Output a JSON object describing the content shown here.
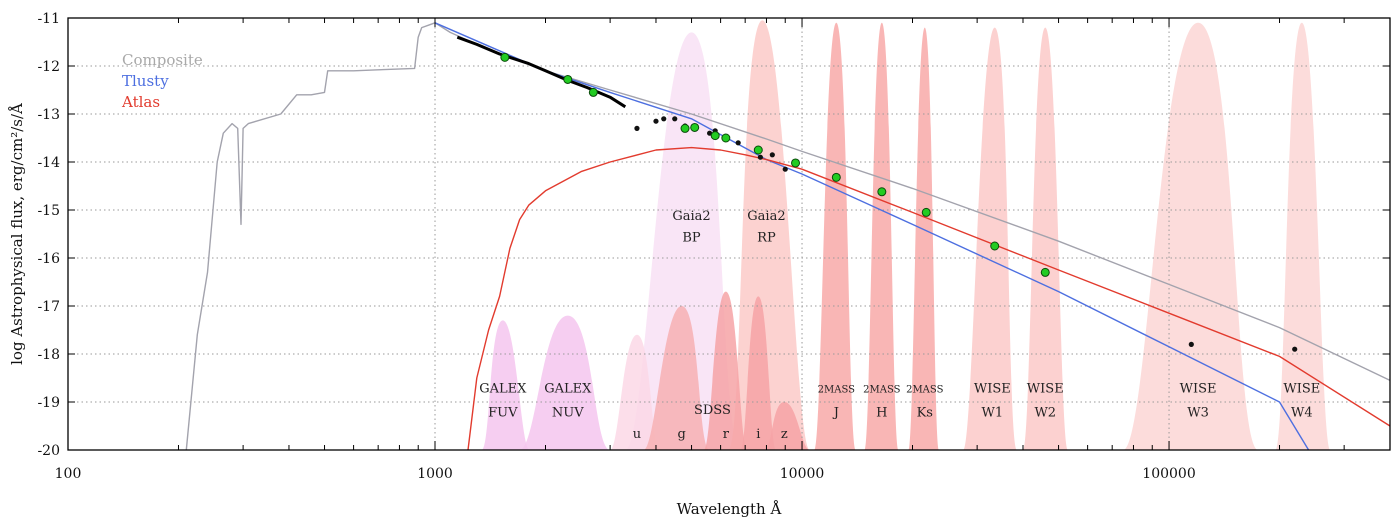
{
  "chart_data": {
    "type": "line",
    "xlabel": "Wavelength Å",
    "ylabel": "log Astrophysical flux, erg/cm²/s/Å",
    "xscale": "log",
    "xlim": [
      100,
      400000
    ],
    "ylim": [
      -20,
      -11
    ],
    "x_ticks": [
      {
        "value": 100,
        "label": "100"
      },
      {
        "value": 1000,
        "label": "1000"
      },
      {
        "value": 10000,
        "label": "10000"
      },
      {
        "value": 100000,
        "label": "100000"
      }
    ],
    "y_ticks": [
      {
        "value": -11,
        "label": "-11"
      },
      {
        "value": -12,
        "label": "-12"
      },
      {
        "value": -13,
        "label": "-13"
      },
      {
        "value": -14,
        "label": "-14"
      },
      {
        "value": -15,
        "label": "-15"
      },
      {
        "value": -16,
        "label": "-16"
      },
      {
        "value": -17,
        "label": "-17"
      },
      {
        "value": -18,
        "label": "-18"
      },
      {
        "value": -19,
        "label": "-19"
      },
      {
        "value": -20,
        "label": "-20"
      }
    ],
    "grid": true,
    "legend_position": "top-left",
    "legend": [
      {
        "label": "Composite",
        "color": "#a9a9a9"
      },
      {
        "label": "Tlusty",
        "color": "#4d6fe0"
      },
      {
        "label": "Atlas",
        "color": "#e23b2e"
      }
    ],
    "series": [
      {
        "name": "Composite",
        "color": "#a3a3ad",
        "x": [
          210,
          225,
          240,
          255,
          265,
          280,
          290,
          296,
          300,
          310,
          380,
          420,
          460,
          500,
          510,
          600,
          700,
          880,
          900,
          920,
          960,
          1000,
          1100,
          1300,
          2000,
          3000,
          5000,
          8000,
          10000,
          20000,
          50000,
          100000,
          200000,
          400000
        ],
        "y": [
          -20,
          -17.6,
          -16.3,
          -14,
          -13.4,
          -13.2,
          -13.3,
          -15.3,
          -13.3,
          -13.2,
          -13.0,
          -12.6,
          -12.6,
          -12.55,
          -12.1,
          -12.1,
          -12.08,
          -12.05,
          -11.4,
          -11.2,
          -11.15,
          -11.1,
          -11.3,
          -11.55,
          -12.1,
          -12.5,
          -13.0,
          -13.52,
          -13.78,
          -14.55,
          -15.65,
          -16.55,
          -17.45,
          -18.55
        ]
      },
      {
        "name": "Tlusty",
        "color": "#4d6fe0",
        "x": [
          1000,
          2000,
          3000,
          5000,
          8000,
          10000,
          20000,
          50000,
          100000,
          200000,
          240000
        ],
        "y": [
          -11.1,
          -12.1,
          -12.55,
          -13.1,
          -13.95,
          -14.25,
          -15.3,
          -16.7,
          -17.85,
          -19.0,
          -20.0
        ]
      },
      {
        "name": "Atlas",
        "color": "#e23b2e",
        "x": [
          1230,
          1300,
          1400,
          1500,
          1600,
          1700,
          1800,
          2000,
          2500,
          3000,
          4000,
          5000,
          6000,
          7000,
          8000,
          10000,
          20000,
          50000,
          100000,
          200000,
          400000
        ],
        "y": [
          -20,
          -18.5,
          -17.5,
          -16.8,
          -15.8,
          -15.2,
          -14.9,
          -14.6,
          -14.2,
          -14.0,
          -13.75,
          -13.7,
          -13.75,
          -13.85,
          -13.95,
          -14.15,
          -15.05,
          -16.25,
          -17.15,
          -18.05,
          -19.5
        ]
      },
      {
        "name": "Observed spectrum",
        "color": "#000000",
        "x": [
          1150,
          1300,
          1500,
          1800,
          2000,
          2300,
          2600,
          3000,
          3300
        ],
        "y": [
          -11.4,
          -11.55,
          -11.75,
          -11.95,
          -12.1,
          -12.3,
          -12.45,
          -12.65,
          -12.85
        ]
      }
    ],
    "photometry_model": {
      "name": "Model photometry",
      "color": "#22cc22",
      "x": [
        1550,
        2300,
        2700,
        4800,
        5100,
        5800,
        6200,
        7600,
        9600,
        12400,
        16500,
        21800,
        33500,
        46000
      ],
      "y": [
        -11.82,
        -12.28,
        -12.55,
        -13.3,
        -13.28,
        -13.45,
        -13.5,
        -13.75,
        -14.02,
        -14.32,
        -14.62,
        -15.05,
        -15.75,
        -16.3
      ]
    },
    "photometry_observed": {
      "name": "Observed photometry",
      "color": "#111111",
      "x": [
        3550,
        4000,
        4200,
        4500,
        4800,
        5600,
        5800,
        6700,
        7700,
        8300,
        9000,
        115000,
        220000
      ],
      "y": [
        -13.3,
        -13.15,
        -13.1,
        -13.1,
        -13.25,
        -13.4,
        -13.35,
        -13.6,
        -13.9,
        -13.85,
        -14.15,
        -17.8,
        -17.9
      ]
    },
    "filter_bands": [
      {
        "name": "GALEX FUV",
        "label": [
          "GALEX",
          "FUV"
        ],
        "color": "#f4c6ee",
        "x_range": [
          1340,
          1810
        ],
        "peak_x": 1530,
        "peak_y": -17.3,
        "label_x": 1530,
        "label_y": [
          -18.7,
          -19.2
        ]
      },
      {
        "name": "GALEX NUV",
        "label": [
          "GALEX",
          "NUV"
        ],
        "color": "#f4c6ee",
        "x_range": [
          1700,
          3000
        ],
        "peak_x": 2300,
        "peak_y": -17.2,
        "label_x": 2300,
        "label_y": [
          -18.7,
          -19.2
        ]
      },
      {
        "name": "Gaia2 BP",
        "label": [
          "Gaia2",
          "BP"
        ],
        "color": "#f8e0f4",
        "x_range": [
          3300,
          6800
        ],
        "peak_x": 5000,
        "peak_y": -11.3,
        "label_x": 5000,
        "label_y": [
          -15.1,
          -15.55
        ]
      },
      {
        "name": "Gaia2 RP",
        "label": [
          "Gaia2",
          "RP"
        ],
        "color": "#fbcac8",
        "x_range": [
          6300,
          10500
        ],
        "peak_x": 7800,
        "peak_y": -11.05,
        "label_x": 8000,
        "label_y": [
          -15.1,
          -15.55
        ]
      },
      {
        "name": "SDSS u",
        "label": [
          "u"
        ],
        "color": "#fbd8e6",
        "x_range": [
          3000,
          4100
        ],
        "peak_x": 3550,
        "peak_y": -17.6,
        "label_x": 3550,
        "label_y": [
          -19.65
        ]
      },
      {
        "name": "SDSS g",
        "label": [
          "g"
        ],
        "color": "#f7b0b3",
        "x_range": [
          3700,
          5600
        ],
        "peak_x": 4700,
        "peak_y": -17.0,
        "label_x": 4700,
        "label_y": [
          -19.65
        ]
      },
      {
        "name": "SDSS r",
        "label": [
          "r"
        ],
        "color": "#f6a3a6",
        "x_range": [
          5400,
          7100
        ],
        "peak_x": 6200,
        "peak_y": -16.7,
        "label_x": 6200,
        "label_y": [
          -19.65
        ]
      },
      {
        "name": "SDSS i",
        "label": [
          "i"
        ],
        "color": "#f6a3a6",
        "x_range": [
          6800,
          8500
        ],
        "peak_x": 7600,
        "peak_y": -16.8,
        "label_x": 7600,
        "label_y": [
          -19.65
        ]
      },
      {
        "name": "SDSS z",
        "label": [
          "z"
        ],
        "color": "#f6a3a6",
        "x_range": [
          7900,
          10500
        ],
        "peak_x": 8950,
        "peak_y": -19.0,
        "label_x": 8950,
        "label_y": [
          -19.65
        ]
      },
      {
        "name": "2MASS J",
        "label": [
          "2MASS",
          "J"
        ],
        "color": "#f8a9a8",
        "x_range": [
          10800,
          14000
        ],
        "peak_x": 12400,
        "peak_y": -11.1,
        "label_x": 12400,
        "label_y": [
          -18.7,
          -19.2
        ],
        "small_first": true
      },
      {
        "name": "2MASS H",
        "label": [
          "2MASS",
          "H"
        ],
        "color": "#f8a9a8",
        "x_range": [
          14800,
          18300
        ],
        "peak_x": 16500,
        "peak_y": -11.1,
        "label_x": 16500,
        "label_y": [
          -18.7,
          -19.2
        ],
        "small_first": true
      },
      {
        "name": "2MASS Ks",
        "label": [
          "2MASS",
          "Ks"
        ],
        "color": "#f8a9a8",
        "x_range": [
          19500,
          23600
        ],
        "peak_x": 21600,
        "peak_y": -11.2,
        "label_x": 21600,
        "label_y": [
          -18.7,
          -19.2
        ],
        "small_first": true
      },
      {
        "name": "WISE W1",
        "label": [
          "WISE",
          "W1"
        ],
        "color": "#fbc9c8",
        "x_range": [
          27500,
          38500
        ],
        "peak_x": 33500,
        "peak_y": -11.2,
        "label_x": 33000,
        "label_y": [
          -18.7,
          -19.2
        ]
      },
      {
        "name": "WISE W2",
        "label": [
          "WISE",
          "W2"
        ],
        "color": "#fbc9c8",
        "x_range": [
          40000,
          53000
        ],
        "peak_x": 46000,
        "peak_y": -11.2,
        "label_x": 46000,
        "label_y": [
          -18.7,
          -19.2
        ]
      },
      {
        "name": "WISE W3",
        "label": [
          "WISE",
          "W3"
        ],
        "color": "#fbd6d5",
        "x_range": [
          75000,
          175000
        ],
        "peak_x": 120000,
        "peak_y": -11.1,
        "label_x": 120000,
        "label_y": [
          -18.7,
          -19.2
        ]
      },
      {
        "name": "WISE W4",
        "label": [
          "WISE",
          "W4"
        ],
        "color": "#fbd6d5",
        "x_range": [
          195000,
          275000
        ],
        "peak_x": 230000,
        "peak_y": -11.1,
        "label_x": 230000,
        "label_y": [
          -18.7,
          -19.2
        ]
      }
    ],
    "sdss_label": {
      "text": "SDSS",
      "x": 5700,
      "y": -19.15
    }
  }
}
